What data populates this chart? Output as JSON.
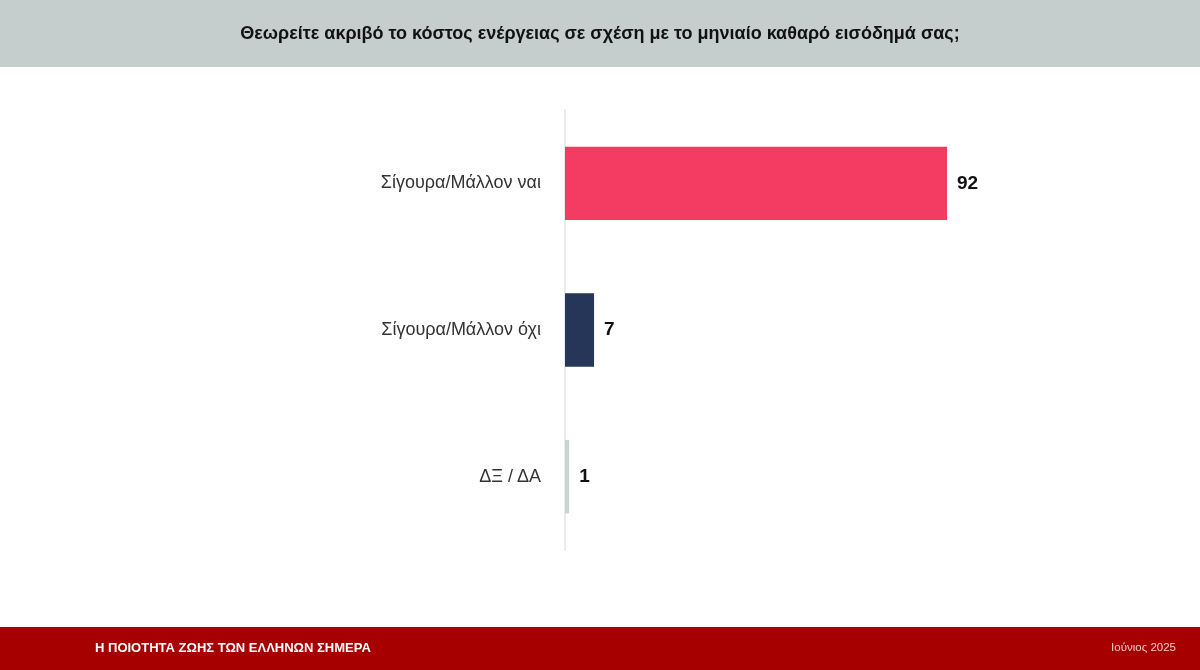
{
  "chart_data": {
    "type": "bar",
    "orientation": "horizontal",
    "title": "Θεωρείτε ακριβό το κόστος ενέργειας σε σχέση με το μηνιαίο καθαρό εισόδημά σας;",
    "categories": [
      "Σίγουρα/Μάλλον ναι",
      "Σίγουρα/Μάλλον όχι",
      "ΔΞ / ΔΑ"
    ],
    "values": [
      92,
      7,
      1
    ],
    "colors": [
      "#f43c63",
      "#263659",
      "#c8d2d1"
    ],
    "data_labels": true,
    "annotations": [
      "Η ΠΟΙΟΤΗΤΑ ΖΩΗΣ ΤΩΝ ΕΛΛΗΝΩΝ ΣΗΜΕΡΑ",
      "Ιούνιος 2025"
    ]
  }
}
